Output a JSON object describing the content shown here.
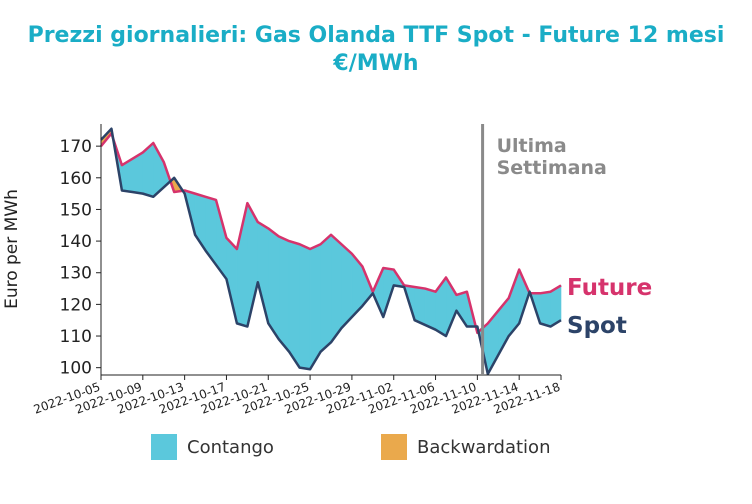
{
  "title": {
    "line1": "Prezzi giornalieri: Gas Olanda TTF Spot - Future 12 mesi",
    "line2": "€/MWh"
  },
  "chart_data": {
    "type": "area",
    "title": "Prezzi giornalieri: Gas Olanda TTF Spot - Future 12 mesi €/MWh",
    "ylabel": "Euro per MWh",
    "xlabel": "",
    "ylim": [
      98,
      177
    ],
    "xlim": [
      "2022-10-05",
      "2022-11-18"
    ],
    "yticks": [
      100,
      110,
      120,
      130,
      140,
      150,
      160,
      170
    ],
    "xticks": [
      "2022-10-05",
      "2022-10-09",
      "2022-10-13",
      "2022-10-17",
      "2022-10-21",
      "2022-10-25",
      "2022-10-29",
      "2022-11-02",
      "2022-11-06",
      "2022-11-10",
      "2022-11-14",
      "2022-11-18"
    ],
    "x": [
      "2022-10-05",
      "2022-10-06",
      "2022-10-07",
      "2022-10-08",
      "2022-10-09",
      "2022-10-10",
      "2022-10-11",
      "2022-10-12",
      "2022-10-13",
      "2022-10-14",
      "2022-10-15",
      "2022-10-16",
      "2022-10-17",
      "2022-10-18",
      "2022-10-19",
      "2022-10-20",
      "2022-10-21",
      "2022-10-22",
      "2022-10-23",
      "2022-10-24",
      "2022-10-25",
      "2022-10-26",
      "2022-10-27",
      "2022-10-28",
      "2022-10-29",
      "2022-10-30",
      "2022-10-31",
      "2022-11-01",
      "2022-11-02",
      "2022-11-03",
      "2022-11-04",
      "2022-11-05",
      "2022-11-06",
      "2022-11-07",
      "2022-11-08",
      "2022-11-09",
      "2022-11-10",
      "2022-11-11",
      "2022-11-12",
      "2022-11-13",
      "2022-11-14",
      "2022-11-15",
      "2022-11-16",
      "2022-11-17",
      "2022-11-18"
    ],
    "series": [
      {
        "name": "Future",
        "color": "#d6336c",
        "values": [
          170,
          174,
          164,
          166,
          168,
          171,
          165,
          155.5,
          156,
          155,
          154,
          153,
          141,
          137.5,
          152,
          146,
          144,
          141.5,
          140,
          139,
          137.5,
          139,
          142,
          139,
          136,
          132,
          124,
          131.5,
          131,
          126,
          125.5,
          125,
          124,
          128.5,
          123,
          124,
          111,
          114,
          118,
          122,
          131,
          123.5,
          123.5,
          124,
          126
        ]
      },
      {
        "name": "Spot",
        "color": "#2c4368",
        "values": [
          172,
          175.5,
          156,
          155.5,
          155,
          154,
          157,
          160,
          155,
          142,
          137,
          132.5,
          128,
          114,
          113,
          127,
          114,
          109,
          105,
          100,
          99.5,
          105,
          108,
          112.5,
          116,
          119.5,
          123.5,
          116,
          126,
          125.5,
          115,
          113.5,
          112,
          110,
          118,
          113,
          113,
          98,
          104,
          110,
          114,
          124,
          114,
          113,
          115
        ]
      }
    ],
    "areas": [
      {
        "name": "Contango",
        "color": "#5bc8dc"
      },
      {
        "name": "Backwardation",
        "color": "#eaa94c"
      }
    ],
    "annotations": [
      {
        "text": "Ultima Settimana",
        "x": "2022-11-11",
        "line": "vertical",
        "color": "#8a8a8a"
      }
    ],
    "series_labels": [
      "Future",
      "Spot"
    ],
    "legend": "bottom",
    "grid": false
  }
}
